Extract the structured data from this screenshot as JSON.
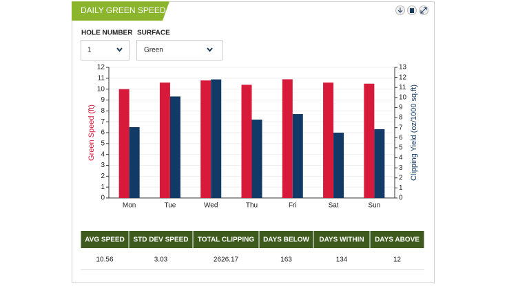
{
  "header": {
    "title": "DAILY GREEN SPEED"
  },
  "filters": [
    {
      "label": "HOLE NUMBER",
      "value": "1"
    },
    {
      "label": "SURFACE",
      "value": "Green"
    }
  ],
  "chart_data": {
    "type": "bar",
    "categories": [
      "Mon",
      "Tue",
      "Wed",
      "Thu",
      "Fri",
      "Sat",
      "Sun"
    ],
    "ylabel": "Green Speed (ft)",
    "y2label": "Clipping Yield (oz/1000 sq.ft)",
    "ylim": [
      0,
      12
    ],
    "yticks": [
      0,
      1,
      2,
      3,
      4,
      5,
      6,
      7,
      8,
      9,
      10,
      11,
      12
    ],
    "y2lim": [
      0,
      13
    ],
    "y2ticks": [
      0,
      1,
      2,
      3,
      4,
      5,
      6,
      7,
      8,
      9,
      10,
      11,
      12,
      13
    ],
    "grid": true,
    "series": [
      {
        "color": "#d7193a",
        "values": [
          10.0,
          10.6,
          10.8,
          10.4,
          10.9,
          10.6,
          10.5
        ]
      },
      {
        "color": "#123a66",
        "axis": "y2",
        "values": [
          7.05,
          10.1,
          11.8,
          7.8,
          8.35,
          6.5,
          6.85
        ]
      }
    ]
  },
  "table": {
    "headers": [
      "AVG SPEED",
      "STD DEV SPEED",
      "TOTAL CLIPPING",
      "DAYS BELOW",
      "DAYS WITHIN",
      "DAYS ABOVE"
    ],
    "rows": [
      [
        "10.56",
        "3.03",
        "2626.17",
        "163",
        "134",
        "12"
      ]
    ]
  }
}
